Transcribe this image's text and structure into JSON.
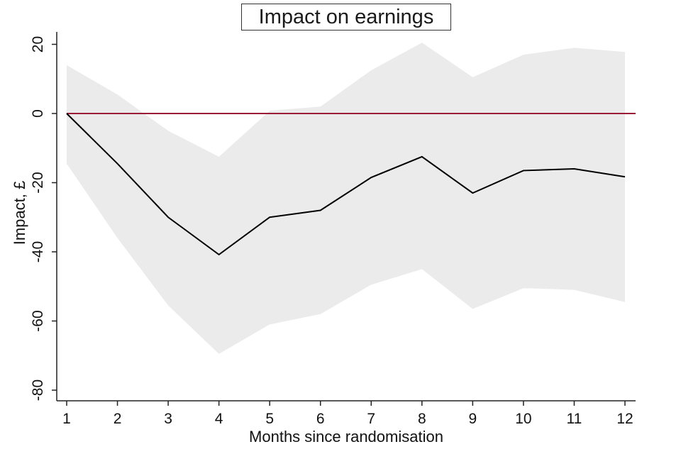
{
  "chart_data": {
    "type": "line",
    "title": "Impact on earnings",
    "xlabel": "Months since randomisation",
    "ylabel": "Impact, £",
    "x": [
      1,
      2,
      3,
      4,
      5,
      6,
      7,
      8,
      9,
      10,
      11,
      12
    ],
    "x_ticks": [
      "1",
      "2",
      "3",
      "4",
      "5",
      "6",
      "7",
      "8",
      "9",
      "10",
      "11",
      "12"
    ],
    "xlim": [
      1,
      12
    ],
    "y_ticks": [
      "20",
      "0",
      "-20",
      "-40",
      "-60",
      "-80"
    ],
    "ylim": [
      -82,
      23
    ],
    "series": [
      {
        "values": [
          0,
          -14.5,
          -30,
          -40.8,
          -30,
          -28,
          -18.5,
          -12.5,
          -23,
          -16.5,
          -16,
          -18.3
        ]
      }
    ],
    "confidence_band": {
      "upper": [
        14,
        5.5,
        -5,
        -12.5,
        0.8,
        2,
        12.5,
        20.5,
        10.5,
        17,
        19,
        17.8
      ],
      "lower": [
        -14.5,
        -36,
        -55.5,
        -69.5,
        -61,
        -58,
        -49.5,
        -45,
        -56.5,
        -50.5,
        -51,
        -54.5
      ]
    },
    "reference_line": 0,
    "grid": false,
    "colors": {
      "line": "#000000",
      "band": "#ebebeb",
      "reference": "#9b1b3a",
      "axis": "#222222"
    }
  }
}
